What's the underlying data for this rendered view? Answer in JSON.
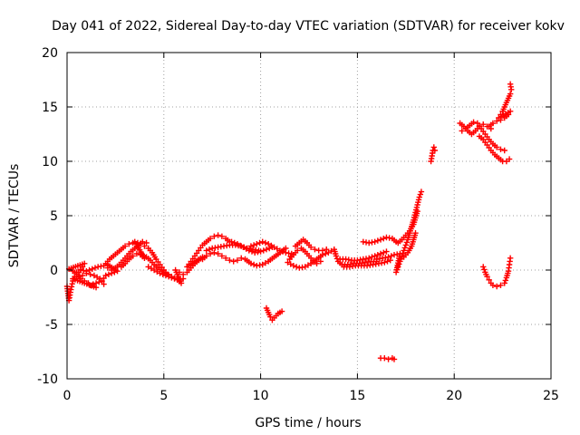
{
  "chart_data": {
    "type": "scatter",
    "title": "Day 041 of 2022, Sidereal Day-to-day VTEC variation (SDTVAR) for receiver kokv",
    "xlabel": "GPS time / hours",
    "ylabel": "SDTVAR / TECUs",
    "xlim": [
      0,
      25
    ],
    "ylim": [
      -10,
      20
    ],
    "xticks": [
      0,
      5,
      10,
      15,
      20,
      25
    ],
    "yticks": [
      -10,
      -5,
      0,
      5,
      10,
      15,
      20
    ],
    "grid": true,
    "marker": "+",
    "color": "#ff0000",
    "series": [
      {
        "name": "SDTVAR",
        "points": [
          [
            0.0,
            -1.5
          ],
          [
            0.1,
            -2.8
          ],
          [
            0.2,
            -1.8
          ],
          [
            0.3,
            -1.0
          ],
          [
            0.4,
            -0.6
          ],
          [
            0.6,
            -0.2
          ],
          [
            0.8,
            0.3
          ],
          [
            0.9,
            0.6
          ],
          [
            0.1,
            0.1
          ],
          [
            0.3,
            -0.1
          ],
          [
            0.5,
            -0.4
          ],
          [
            0.7,
            -0.8
          ],
          [
            0.9,
            -1.0
          ],
          [
            1.1,
            -1.2
          ],
          [
            1.3,
            -1.4
          ],
          [
            1.5,
            -1.6
          ],
          [
            0.3,
            -0.8
          ],
          [
            0.5,
            -0.6
          ],
          [
            0.8,
            -0.5
          ],
          [
            1.0,
            -0.3
          ],
          [
            1.2,
            -0.4
          ],
          [
            1.4,
            -0.5
          ],
          [
            1.7,
            -0.8
          ],
          [
            1.9,
            -1.3
          ],
          [
            0.5,
            -0.2
          ],
          [
            0.7,
            0.0
          ],
          [
            1.0,
            -0.1
          ],
          [
            1.3,
            0.1
          ],
          [
            1.6,
            0.3
          ],
          [
            1.9,
            0.4
          ],
          [
            2.1,
            0.2
          ],
          [
            2.3,
            0.0
          ],
          [
            1.2,
            -1.4
          ],
          [
            1.5,
            -1.2
          ],
          [
            1.8,
            -1.0
          ],
          [
            2.0,
            -0.5
          ],
          [
            2.3,
            -0.3
          ],
          [
            2.6,
            -0.1
          ],
          [
            2.0,
            0.6
          ],
          [
            2.2,
            1.0
          ],
          [
            2.4,
            1.3
          ],
          [
            2.6,
            1.6
          ],
          [
            2.8,
            1.9
          ],
          [
            3.0,
            2.2
          ],
          [
            3.2,
            2.4
          ],
          [
            3.4,
            2.5
          ],
          [
            2.5,
            0.2
          ],
          [
            2.7,
            0.5
          ],
          [
            2.9,
            0.9
          ],
          [
            3.1,
            1.3
          ],
          [
            3.3,
            1.7
          ],
          [
            3.5,
            2.0
          ],
          [
            3.7,
            2.3
          ],
          [
            3.9,
            2.6
          ],
          [
            4.1,
            2.5
          ],
          [
            2.8,
            0.3
          ],
          [
            3.0,
            0.6
          ],
          [
            3.2,
            1.0
          ],
          [
            3.4,
            1.3
          ],
          [
            3.6,
            1.5
          ],
          [
            3.8,
            1.4
          ],
          [
            4.0,
            1.1
          ],
          [
            3.5,
            2.6
          ],
          [
            3.8,
            2.4
          ],
          [
            4.0,
            2.2
          ],
          [
            4.2,
            2.0
          ],
          [
            4.4,
            1.6
          ],
          [
            4.6,
            1.0
          ],
          [
            4.8,
            0.5
          ],
          [
            5.0,
            0.0
          ],
          [
            5.2,
            -0.4
          ],
          [
            5.4,
            -0.6
          ],
          [
            3.8,
            1.5
          ],
          [
            4.1,
            1.2
          ],
          [
            4.3,
            0.9
          ],
          [
            4.5,
            0.5
          ],
          [
            4.7,
            0.2
          ],
          [
            4.9,
            -0.1
          ],
          [
            5.1,
            -0.3
          ],
          [
            5.4,
            -0.6
          ],
          [
            5.7,
            -0.9
          ],
          [
            6.0,
            -0.8
          ],
          [
            4.2,
            0.3
          ],
          [
            4.5,
            0.0
          ],
          [
            4.8,
            -0.3
          ],
          [
            5.1,
            -0.5
          ],
          [
            5.4,
            -0.7
          ],
          [
            5.7,
            -0.9
          ],
          [
            5.9,
            -1.2
          ],
          [
            5.6,
            0.0
          ],
          [
            5.8,
            -0.2
          ],
          [
            6.0,
            -0.4
          ],
          [
            6.2,
            -0.2
          ],
          [
            6.4,
            0.2
          ],
          [
            6.6,
            0.6
          ],
          [
            6.8,
            0.9
          ],
          [
            7.0,
            1.2
          ],
          [
            6.2,
            0.3
          ],
          [
            6.4,
            0.8
          ],
          [
            6.6,
            1.3
          ],
          [
            6.8,
            1.8
          ],
          [
            7.0,
            2.3
          ],
          [
            7.2,
            2.6
          ],
          [
            7.4,
            2.9
          ],
          [
            7.6,
            3.1
          ],
          [
            7.8,
            3.2
          ],
          [
            8.0,
            3.1
          ],
          [
            8.2,
            2.9
          ],
          [
            8.4,
            2.6
          ],
          [
            7.0,
            1.0
          ],
          [
            7.2,
            1.3
          ],
          [
            7.4,
            1.5
          ],
          [
            7.6,
            1.6
          ],
          [
            7.8,
            1.5
          ],
          [
            8.0,
            1.3
          ],
          [
            8.2,
            1.1
          ],
          [
            8.4,
            0.9
          ],
          [
            8.6,
            0.8
          ],
          [
            8.8,
            0.9
          ],
          [
            9.0,
            1.1
          ],
          [
            7.2,
            1.8
          ],
          [
            7.5,
            2.0
          ],
          [
            7.8,
            2.1
          ],
          [
            8.1,
            2.2
          ],
          [
            8.4,
            2.3
          ],
          [
            8.7,
            2.3
          ],
          [
            9.0,
            2.2
          ],
          [
            9.3,
            2.0
          ],
          [
            9.6,
            1.9
          ],
          [
            9.9,
            1.8
          ],
          [
            8.5,
            2.6
          ],
          [
            8.8,
            2.4
          ],
          [
            9.1,
            2.1
          ],
          [
            9.4,
            1.8
          ],
          [
            9.7,
            1.6
          ],
          [
            10.0,
            1.7
          ],
          [
            10.3,
            1.9
          ],
          [
            10.6,
            2.1
          ],
          [
            9.2,
            1.0
          ],
          [
            9.5,
            0.6
          ],
          [
            9.8,
            0.4
          ],
          [
            10.1,
            0.5
          ],
          [
            10.4,
            0.8
          ],
          [
            10.7,
            1.2
          ],
          [
            11.0,
            1.6
          ],
          [
            11.3,
            2.0
          ],
          [
            9.5,
            2.2
          ],
          [
            9.8,
            2.4
          ],
          [
            10.1,
            2.6
          ],
          [
            10.4,
            2.4
          ],
          [
            10.7,
            2.1
          ],
          [
            11.0,
            1.8
          ],
          [
            11.3,
            1.6
          ],
          [
            11.6,
            1.5
          ],
          [
            11.5,
            1.0
          ],
          [
            11.7,
            1.4
          ],
          [
            11.9,
            1.8
          ],
          [
            12.1,
            2.0
          ],
          [
            12.3,
            1.7
          ],
          [
            12.5,
            1.3
          ],
          [
            12.7,
            0.9
          ],
          [
            12.9,
            0.6
          ],
          [
            13.1,
            0.8
          ],
          [
            11.8,
            2.2
          ],
          [
            12.0,
            2.5
          ],
          [
            12.2,
            2.8
          ],
          [
            12.4,
            2.5
          ],
          [
            12.6,
            2.1
          ],
          [
            12.8,
            1.9
          ],
          [
            13.0,
            1.8
          ],
          [
            13.2,
            1.8
          ],
          [
            13.4,
            1.9
          ],
          [
            11.4,
            0.7
          ],
          [
            11.7,
            0.4
          ],
          [
            12.0,
            0.2
          ],
          [
            12.3,
            0.3
          ],
          [
            12.6,
            0.6
          ],
          [
            12.9,
            1.0
          ],
          [
            13.2,
            1.4
          ],
          [
            13.5,
            1.6
          ],
          [
            13.8,
            1.9
          ],
          [
            13.9,
            1.3
          ],
          [
            14.0,
            0.8
          ],
          [
            14.2,
            0.5
          ],
          [
            14.5,
            0.5
          ],
          [
            14.8,
            0.6
          ],
          [
            15.1,
            0.6
          ],
          [
            15.4,
            0.7
          ],
          [
            15.7,
            0.8
          ],
          [
            16.0,
            0.8
          ],
          [
            14.1,
            1.0
          ],
          [
            14.4,
            1.0
          ],
          [
            14.7,
            0.9
          ],
          [
            15.0,
            0.9
          ],
          [
            15.3,
            1.0
          ],
          [
            15.6,
            1.1
          ],
          [
            15.9,
            1.3
          ],
          [
            16.2,
            1.5
          ],
          [
            16.5,
            1.7
          ],
          [
            14.3,
            0.3
          ],
          [
            14.6,
            0.3
          ],
          [
            14.9,
            0.4
          ],
          [
            15.2,
            0.4
          ],
          [
            15.5,
            0.4
          ],
          [
            15.8,
            0.5
          ],
          [
            16.1,
            0.6
          ],
          [
            16.4,
            0.7
          ],
          [
            16.7,
            0.9
          ],
          [
            15.3,
            2.6
          ],
          [
            15.6,
            2.5
          ],
          [
            15.9,
            2.6
          ],
          [
            16.2,
            2.8
          ],
          [
            16.5,
            3.0
          ],
          [
            16.8,
            2.9
          ],
          [
            17.0,
            2.6
          ],
          [
            16.0,
            1.0
          ],
          [
            16.3,
            1.1
          ],
          [
            16.6,
            1.2
          ],
          [
            16.9,
            1.4
          ],
          [
            17.2,
            1.5
          ],
          [
            17.0,
            -0.2
          ],
          [
            17.1,
            0.3
          ],
          [
            17.2,
            0.8
          ],
          [
            17.3,
            1.3
          ],
          [
            17.4,
            1.8
          ],
          [
            17.5,
            2.3
          ],
          [
            17.6,
            2.8
          ],
          [
            17.7,
            3.4
          ],
          [
            17.8,
            4.0
          ],
          [
            17.9,
            4.6
          ],
          [
            18.0,
            5.3
          ],
          [
            18.1,
            6.0
          ],
          [
            18.2,
            6.7
          ],
          [
            18.3,
            7.2
          ],
          [
            17.1,
            2.5
          ],
          [
            17.3,
            2.8
          ],
          [
            17.5,
            3.2
          ],
          [
            17.7,
            3.6
          ],
          [
            17.9,
            4.2
          ],
          [
            18.0,
            4.8
          ],
          [
            18.1,
            5.4
          ],
          [
            17.2,
            1.0
          ],
          [
            17.4,
            1.2
          ],
          [
            17.6,
            1.6
          ],
          [
            17.8,
            2.2
          ],
          [
            17.9,
            2.8
          ],
          [
            18.0,
            3.4
          ],
          [
            18.8,
            10.0
          ],
          [
            18.85,
            10.5
          ],
          [
            18.9,
            11.0
          ],
          [
            18.95,
            11.3
          ],
          [
            19.0,
            11.0
          ],
          [
            20.3,
            13.5
          ],
          [
            20.5,
            13.2
          ],
          [
            20.7,
            12.8
          ],
          [
            20.9,
            12.5
          ],
          [
            21.1,
            12.8
          ],
          [
            21.3,
            13.2
          ],
          [
            21.5,
            13.4
          ],
          [
            21.7,
            13.2
          ],
          [
            21.9,
            13.0
          ],
          [
            20.4,
            12.8
          ],
          [
            20.6,
            13.0
          ],
          [
            20.8,
            13.3
          ],
          [
            21.0,
            13.6
          ],
          [
            21.2,
            13.5
          ],
          [
            21.4,
            13.0
          ],
          [
            21.6,
            12.5
          ],
          [
            21.8,
            12.0
          ],
          [
            22.0,
            11.6
          ],
          [
            22.2,
            11.3
          ],
          [
            22.4,
            11.1
          ],
          [
            22.6,
            11.0
          ],
          [
            21.3,
            12.3
          ],
          [
            21.5,
            12.0
          ],
          [
            21.7,
            11.5
          ],
          [
            21.9,
            11.0
          ],
          [
            22.1,
            10.6
          ],
          [
            22.3,
            10.3
          ],
          [
            22.5,
            10.0
          ],
          [
            22.7,
            10.0
          ],
          [
            22.85,
            10.2
          ],
          [
            21.8,
            13.2
          ],
          [
            22.0,
            13.5
          ],
          [
            22.2,
            13.7
          ],
          [
            22.4,
            13.8
          ],
          [
            22.6,
            14.0
          ],
          [
            22.8,
            14.3
          ],
          [
            22.9,
            14.6
          ],
          [
            22.3,
            14.0
          ],
          [
            22.4,
            14.3
          ],
          [
            22.5,
            14.6
          ],
          [
            22.6,
            15.0
          ],
          [
            22.7,
            15.4
          ],
          [
            22.8,
            15.8
          ],
          [
            22.9,
            16.2
          ],
          [
            22.95,
            16.6
          ],
          [
            22.9,
            17.1
          ],
          [
            21.5,
            0.3
          ],
          [
            21.6,
            -0.2
          ],
          [
            21.7,
            -0.6
          ],
          [
            21.8,
            -0.9
          ],
          [
            21.9,
            -1.2
          ],
          [
            22.0,
            -1.4
          ],
          [
            22.2,
            -1.5
          ],
          [
            22.4,
            -1.4
          ],
          [
            22.6,
            -1.2
          ],
          [
            22.7,
            -0.7
          ],
          [
            22.8,
            -0.1
          ],
          [
            22.85,
            0.5
          ],
          [
            22.9,
            1.1
          ],
          [
            10.3,
            -3.5
          ],
          [
            10.4,
            -3.9
          ],
          [
            10.5,
            -4.3
          ],
          [
            10.6,
            -4.6
          ],
          [
            10.7,
            -4.4
          ],
          [
            10.8,
            -4.2
          ],
          [
            10.9,
            -4.0
          ],
          [
            11.0,
            -3.9
          ],
          [
            11.1,
            -3.8
          ],
          [
            16.2,
            -8.1
          ],
          [
            16.4,
            -8.1
          ],
          [
            16.6,
            -8.2
          ],
          [
            16.8,
            -8.1
          ],
          [
            16.9,
            -8.2
          ]
        ]
      }
    ]
  }
}
